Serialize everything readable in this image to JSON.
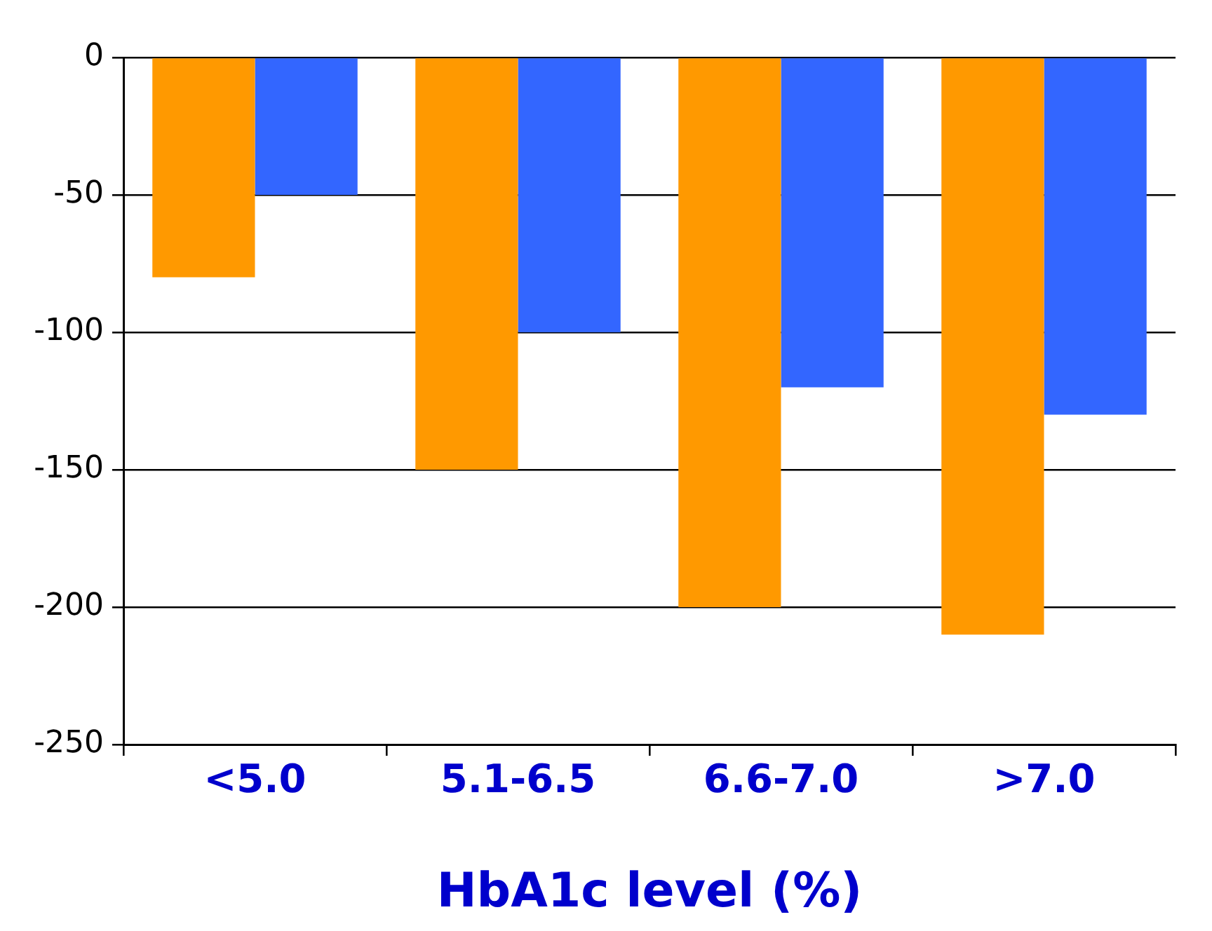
{
  "chart_data": {
    "type": "bar",
    "xlabel": "HbA1c level (%)",
    "categories": [
      "<5.0",
      "5.1-6.5",
      "6.6-7.0",
      ">7.0"
    ],
    "series": [
      {
        "color": "#ff9900",
        "values": [
          -80,
          -150,
          -200,
          -210
        ]
      },
      {
        "color": "#3366ff",
        "values": [
          -50,
          -100,
          -120,
          -130
        ]
      }
    ],
    "ylim": [
      -250,
      0
    ],
    "yticks": [
      0,
      -50,
      -100,
      -150,
      -200,
      -250
    ],
    "grid": "y"
  }
}
